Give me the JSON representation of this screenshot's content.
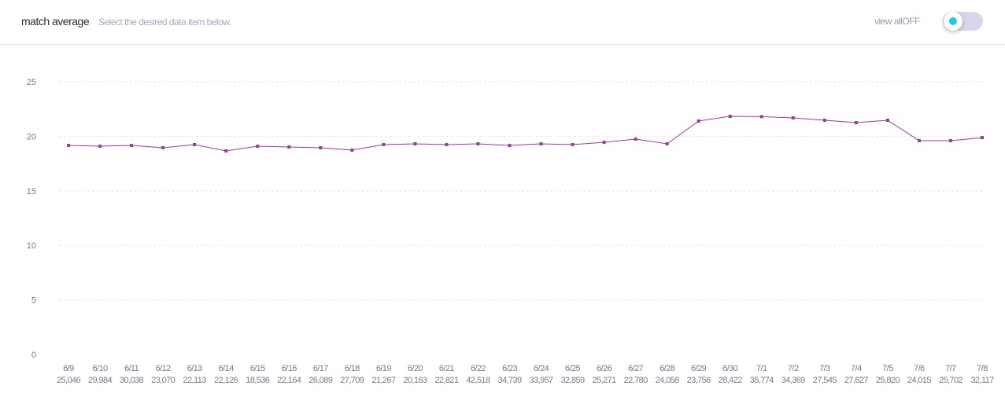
{
  "header": {
    "title": "match average",
    "subtitle": "Select the desired data item below.",
    "view_all_label": "view all",
    "toggle_state": "OFF"
  },
  "colors": {
    "line": "#9b3aa0",
    "toggle_dot": "#1ec8f0",
    "toggle_track": "#d9d5ec"
  },
  "chart_data": {
    "type": "line",
    "title": "match average",
    "xlabel": "",
    "ylabel": "",
    "ylim": [
      0,
      25
    ],
    "yticks": [
      "0",
      "5",
      "10",
      "15",
      "20",
      "25"
    ],
    "grid": true,
    "categories": [
      "6/9",
      "6/10",
      "6/11",
      "6/12",
      "6/13",
      "6/14",
      "6/15",
      "6/16",
      "6/17",
      "6/18",
      "6/19",
      "6/20",
      "6/21",
      "6/22",
      "6/23",
      "6/24",
      "6/25",
      "6/26",
      "6/27",
      "6/28",
      "6/29",
      "6/30",
      "7/1",
      "7/2",
      "7/3",
      "7/4",
      "7/5",
      "7/6",
      "7/7",
      "7/8"
    ],
    "counts": [
      "25,046",
      "29,984",
      "30,038",
      "23,070",
      "22,113",
      "22,126",
      "18,536",
      "22,164",
      "26,089",
      "27,709",
      "21,267",
      "20,163",
      "22,821",
      "42,518",
      "34,739",
      "33,957",
      "32,859",
      "25,271",
      "22,780",
      "24,058",
      "23,756",
      "28,422",
      "35,774",
      "34,369",
      "27,545",
      "27,627",
      "25,820",
      "24,015",
      "25,702",
      "32,117"
    ],
    "series": [
      {
        "name": "match average",
        "values": [
          19.16,
          19.09,
          19.16,
          18.95,
          19.24,
          18.66,
          19.09,
          19.02,
          18.95,
          18.73,
          19.24,
          19.31,
          19.24,
          19.31,
          19.16,
          19.31,
          19.24,
          19.45,
          19.74,
          19.31,
          21.4,
          21.83,
          21.8,
          21.69,
          21.47,
          21.25,
          21.47,
          19.6,
          19.6,
          19.88
        ]
      }
    ]
  }
}
